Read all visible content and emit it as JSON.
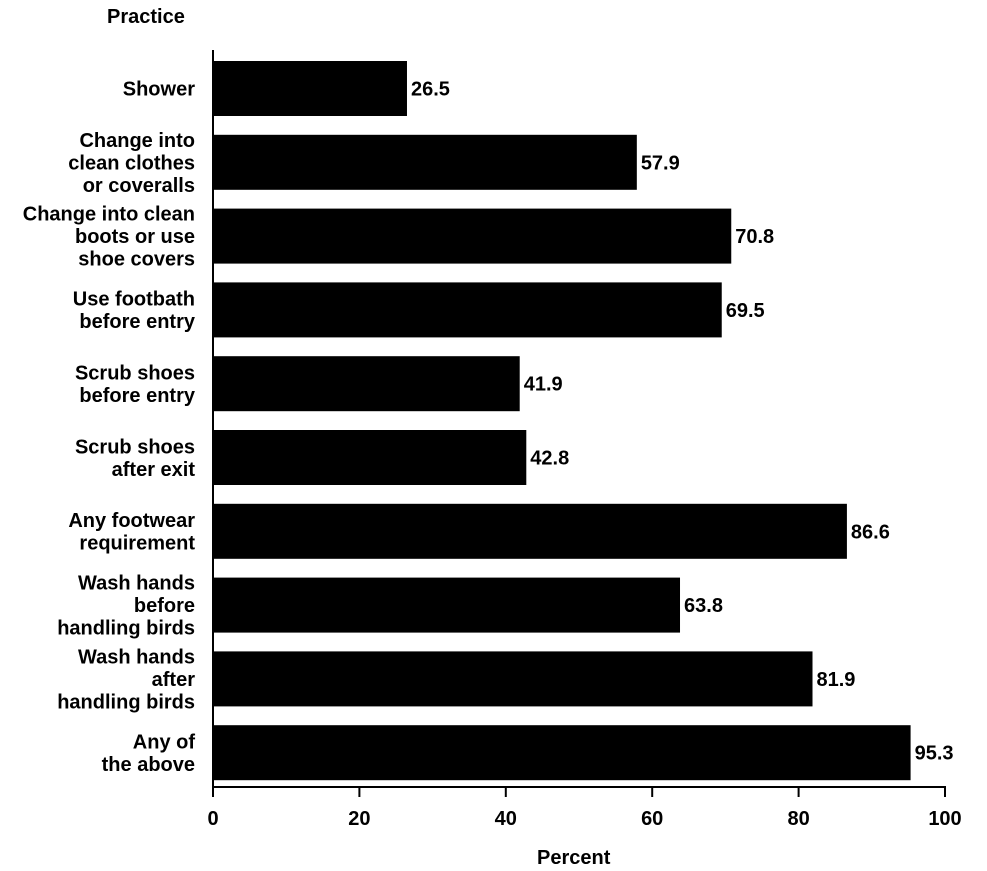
{
  "chart_data": {
    "type": "bar",
    "orientation": "horizontal",
    "ylabel": "Practice",
    "xlabel": "Percent",
    "xlim": [
      0,
      100
    ],
    "xticks": [
      0,
      20,
      40,
      60,
      80,
      100
    ],
    "grid": false,
    "categories": [
      [
        "Shower"
      ],
      [
        "Change into",
        "clean clothes",
        "or coveralls"
      ],
      [
        "Change into clean",
        "boots or use",
        "shoe covers"
      ],
      [
        "Use footbath",
        "before entry"
      ],
      [
        "Scrub shoes",
        "before entry"
      ],
      [
        "Scrub shoes",
        "after exit"
      ],
      [
        "Any footwear",
        "requirement"
      ],
      [
        "Wash hands",
        "before",
        "handling birds"
      ],
      [
        "Wash hands",
        "after",
        "handling birds"
      ],
      [
        "Any of",
        "the above"
      ]
    ],
    "values": [
      26.5,
      57.9,
      70.8,
      69.5,
      41.9,
      42.8,
      86.6,
      63.8,
      81.9,
      95.3
    ],
    "value_labels": [
      "26.5",
      "57.9",
      "70.8",
      "69.5",
      "41.9",
      "42.8",
      "86.6",
      "63.8",
      "81.9",
      "95.3"
    ],
    "bar_color": "#000000"
  }
}
